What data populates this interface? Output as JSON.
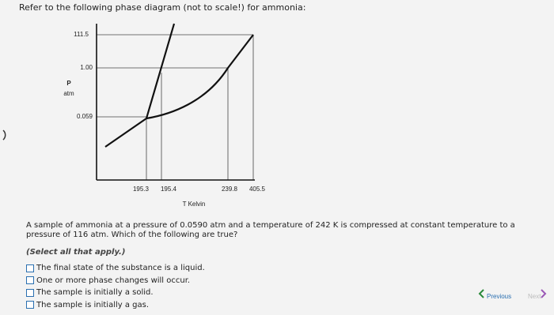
{
  "prompt": "Refer to the following phase diagram (not to scale!) for ammonia:",
  "diagram": {
    "y_labels": [
      "111.5",
      "1.00",
      "0.059"
    ],
    "y_axis_label": {
      "symbol": "P",
      "unit": "atm"
    },
    "x_labels": [
      "195.3",
      "195.4",
      "239.8",
      "405.5"
    ],
    "x_axis_label": "T Kelvin"
  },
  "question": {
    "text": "A sample of ammonia at a pressure of 0.0590 atm and a temperature of 242 K is compressed at constant temperature to a pressure of 116 atm. Which of the following are true?",
    "instruction": "(Select all that apply.)",
    "options": [
      "The final state of the substance is a liquid.",
      "One or more phase changes will occur.",
      "The sample is initially a solid.",
      "The sample is initially a gas."
    ]
  },
  "nav": {
    "previous": "Previous",
    "next": "Next"
  }
}
